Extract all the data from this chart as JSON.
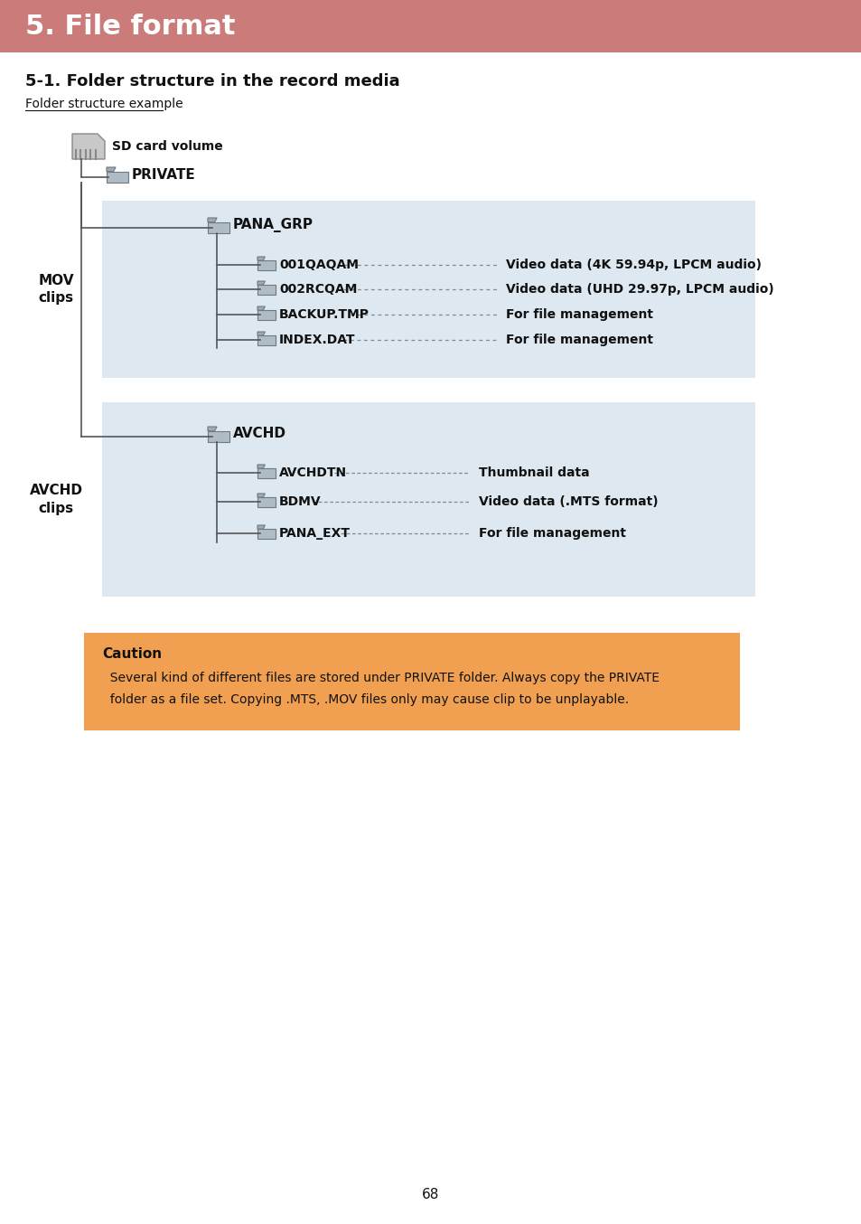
{
  "title": "5. File format",
  "title_bg": "#cc7b7b",
  "title_color": "#ffffff",
  "section_title": "5-1. Folder structure in the record media",
  "subtitle_link": "Folder structure example",
  "page_number": "68",
  "bg_color": "#ffffff",
  "box1_bg": "#dde8f0",
  "box2_bg": "#dde8f0",
  "caution_bg": "#f0a050",
  "caution_title": "Caution",
  "caution_line1": "  Several kind of different files are stored under PRIVATE folder. Always copy the PRIVATE",
  "caution_line2": "  folder as a file set. Copying .MTS, .MOV files only may cause clip to be unplayable.",
  "mov_label": "MOV\nclips",
  "avchd_label": "AVCHD\nclips",
  "sd_label": "SD card volume",
  "private_label": "PRIVATE",
  "pana_grp_label": "PANA_GRP",
  "avchd_folder_label": "AVCHD",
  "line_color": "#555555",
  "folder_face": "#b0bcc5",
  "folder_tab": "#a0aab0",
  "folder_edge": "#707880",
  "mov_items": [
    {
      "name": "001QAQAM",
      "desc": "Video data (4K 59.94p, LPCM audio)"
    },
    {
      "name": "002RCQAM",
      "desc": "Video data (UHD 29.97p, LPCM audio)"
    },
    {
      "name": "BACKUP.TMP",
      "desc": "For file management"
    },
    {
      "name": "INDEX.DAT",
      "desc": "For file management"
    }
  ],
  "avchd_items": [
    {
      "name": "AVCHDTN",
      "desc": "Thumbnail data"
    },
    {
      "name": "BDMV",
      "desc": "Video data (.MTS format)"
    },
    {
      "name": "PANA_EXT",
      "desc": "For file management"
    }
  ]
}
